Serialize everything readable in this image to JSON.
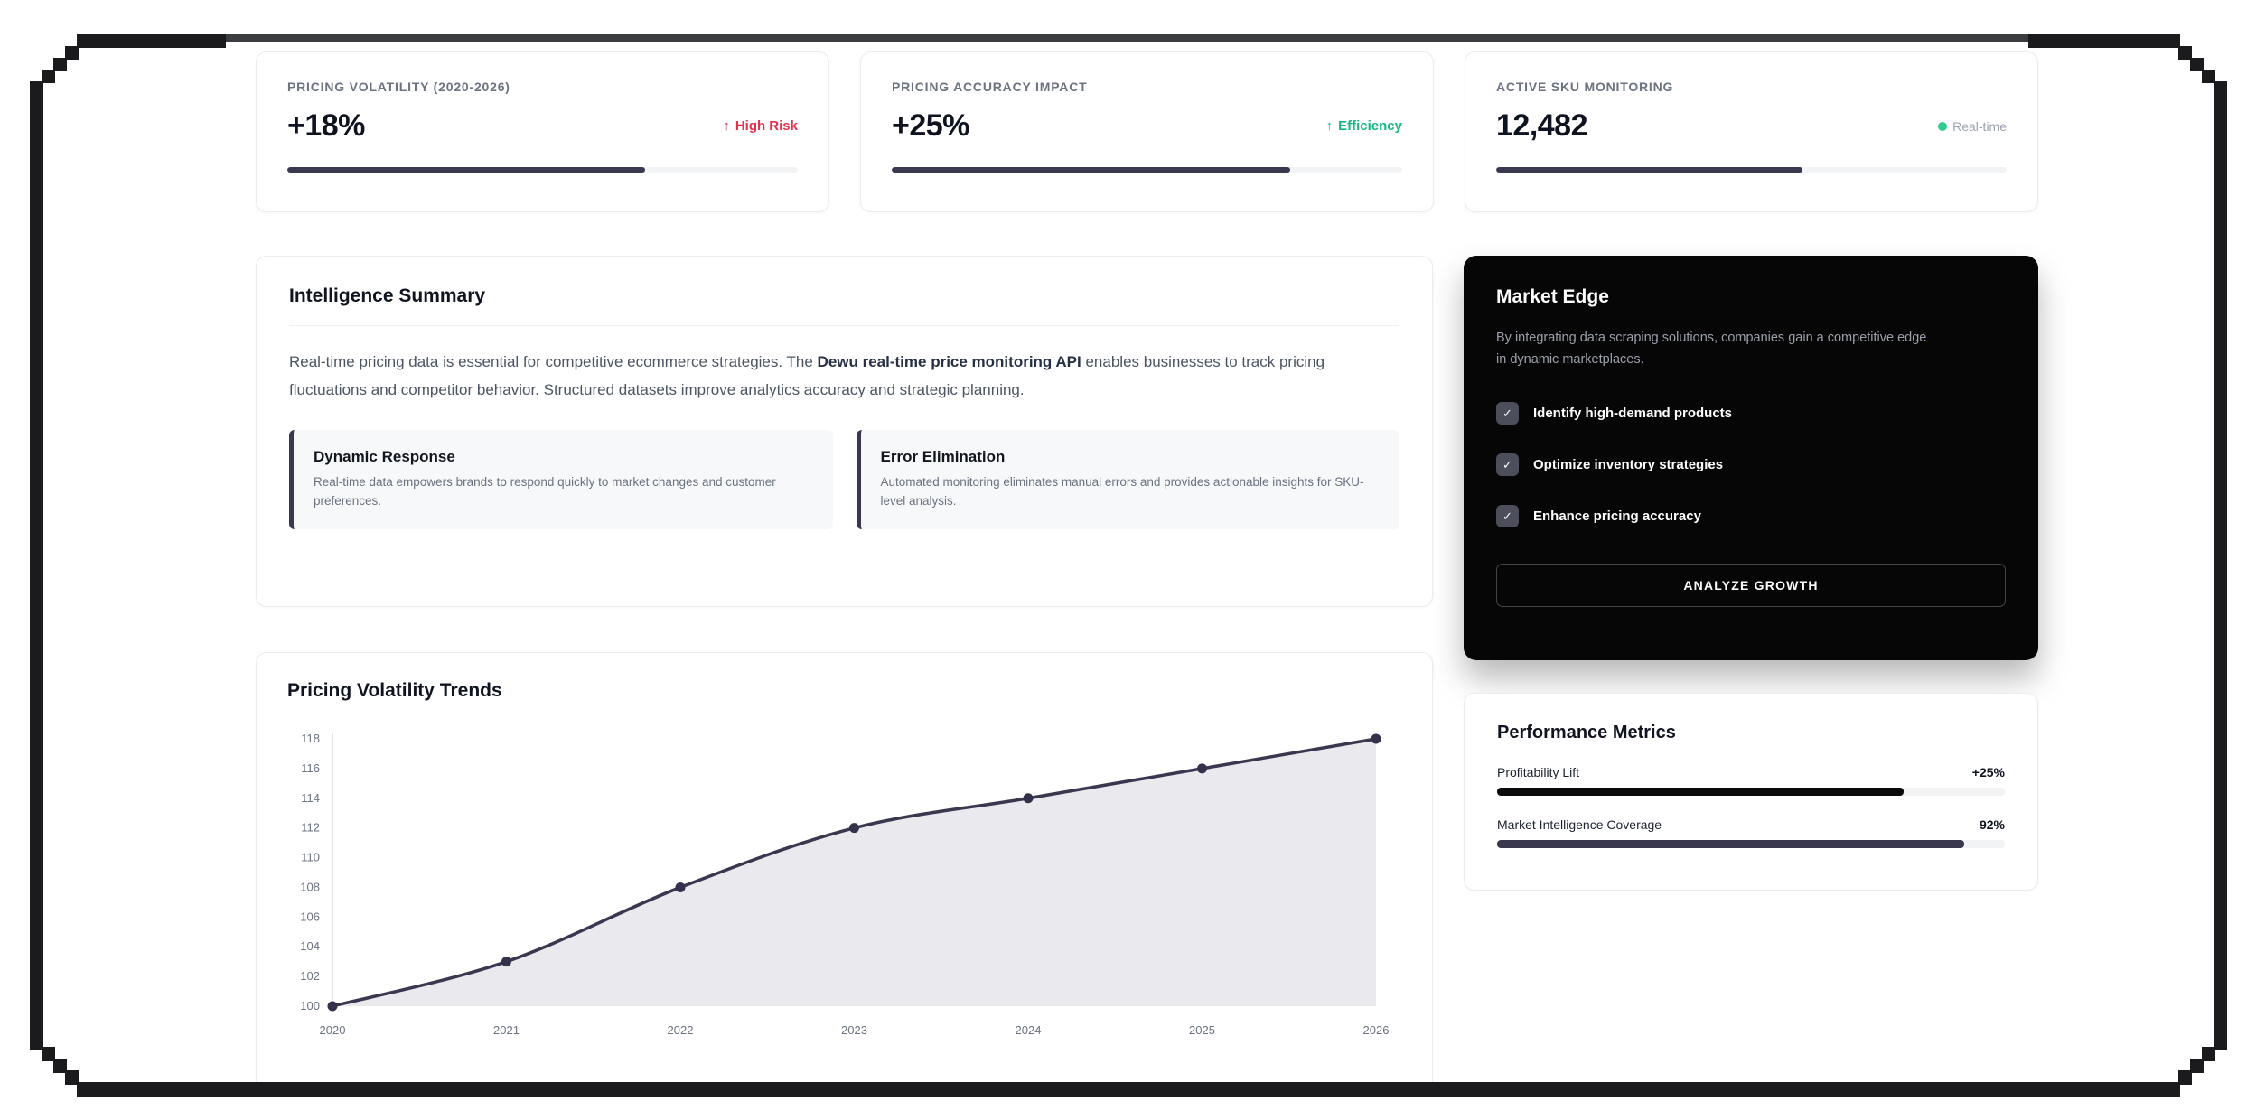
{
  "stats": [
    {
      "label": "PRICING VOLATILITY (2020-2026)",
      "value": "+18%",
      "badge_icon": "↑",
      "badge": "High Risk",
      "badge_color": "#e5304c",
      "progress": 70
    },
    {
      "label": "PRICING ACCURACY IMPACT",
      "value": "+25%",
      "badge_icon": "↑",
      "badge": "Efficiency",
      "badge_color": "#13b981",
      "progress": 78
    },
    {
      "label": "ACTIVE SKU MONITORING",
      "value": "12,482",
      "badge": "Real-time",
      "badge_color": "#9ca3af",
      "dot_color": "#2ecc8e",
      "progress": 60
    }
  ],
  "summary": {
    "title": "Intelligence Summary",
    "paragraph_prefix": "Real-time pricing data is essential for competitive ecommerce strategies. The ",
    "paragraph_bold": "Dewu real-time price monitoring API",
    "paragraph_suffix": " enables businesses to track pricing fluctuations and competitor behavior. Structured datasets improve analytics accuracy and strategic planning.",
    "features": [
      {
        "title": "Dynamic Response",
        "text": "Real-time data empowers brands to respond quickly to market changes and customer preferences."
      },
      {
        "title": "Error Elimination",
        "text": "Automated monitoring eliminates manual errors and provides actionable insights for SKU-level analysis."
      }
    ]
  },
  "market_edge": {
    "title": "Market Edge",
    "description": "By integrating data scraping solutions, companies gain a competitive edge in dynamic marketplaces.",
    "check_glyph": "✓",
    "items": [
      {
        "label": "Identify high-demand products",
        "checked": true
      },
      {
        "label": "Optimize inventory strategies",
        "checked": true
      },
      {
        "label": "Enhance pricing accuracy",
        "checked": true
      }
    ],
    "button_label": "ANALYZE GROWTH"
  },
  "performance": {
    "title": "Performance Metrics",
    "metrics": [
      {
        "label": "Profitability Lift",
        "value": "+25%",
        "percent": 80,
        "color": "#0a0a0b"
      },
      {
        "label": "Market Intelligence Coverage",
        "value": "92%",
        "percent": 92,
        "color": "#39384f"
      }
    ]
  },
  "chart_data": {
    "type": "line",
    "title": "Pricing Volatility Trends",
    "x": [
      2020,
      2021,
      2022,
      2023,
      2024,
      2025,
      2026
    ],
    "values": [
      100,
      103,
      108,
      112,
      114,
      116,
      118
    ],
    "ylim": [
      100,
      118
    ],
    "ytick_step": 2,
    "xlabel": "",
    "ylabel": "",
    "grid": false,
    "legend": false,
    "line_color": "#39384f",
    "marker_color": "#33324a",
    "area_color": "#e9e9ee",
    "axis_color": "#e3e5e9",
    "tick_color": "#6b7280"
  },
  "frame": {
    "color": "#1b1b1d",
    "top_accent_color": "#3b3c40"
  }
}
